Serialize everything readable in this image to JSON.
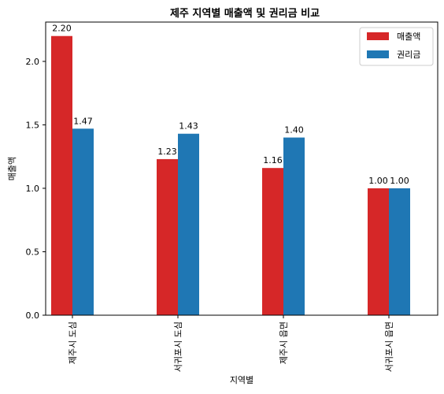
{
  "chart_data": {
    "type": "bar",
    "title": "제주 지역별 매출액 및 권리금 비교",
    "xlabel": "지역별",
    "ylabel": "매출액",
    "categories": [
      "제주시 도심",
      "서귀포시 도심",
      "제주시 읍면",
      "서귀포시 읍면"
    ],
    "series": [
      {
        "name": "매출액",
        "color": "#d62728",
        "values": [
          2.2,
          1.23,
          1.16,
          1.0
        ],
        "labels": [
          "2.20",
          "1.23",
          "1.16",
          "1.00"
        ]
      },
      {
        "name": "권리금",
        "color": "#1f77b4",
        "values": [
          1.47,
          1.43,
          1.4,
          1.0
        ],
        "labels": [
          "1.47",
          "1.43",
          "1.40",
          "1.00"
        ]
      }
    ],
    "ylim": [
      0,
      2.31
    ],
    "yticks": [
      0.0,
      0.5,
      1.0,
      1.5,
      2.0
    ],
    "ytick_labels": [
      "0.0",
      "0.5",
      "1.0",
      "1.5",
      "2.0"
    ],
    "grid": false,
    "legend_position": "top-right"
  }
}
